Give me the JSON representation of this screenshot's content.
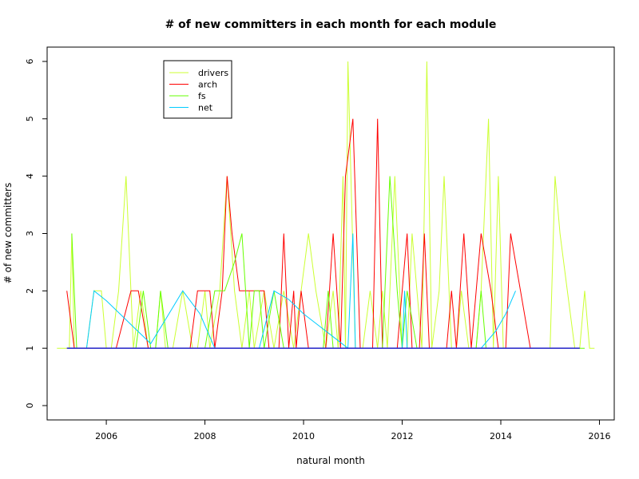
{
  "chart_data": {
    "type": "line",
    "title": "# of new committers in each month for each module",
    "xlabel": "natural month",
    "ylabel": "# of new committers",
    "xlim": [
      2004.8,
      2016.3
    ],
    "ylim": [
      -0.25,
      6.25
    ],
    "xticks": [
      2006,
      2008,
      2010,
      2012,
      2014,
      2016
    ],
    "xtick_labels": [
      "2006",
      "2008",
      "2010",
      "2012",
      "2014",
      "2016"
    ],
    "yticks": [
      0,
      1,
      2,
      3,
      4,
      5,
      6
    ],
    "ytick_labels": [
      "0",
      "1",
      "2",
      "3",
      "4",
      "5",
      "6"
    ],
    "grid": false,
    "legend_position": "top-left",
    "series": [
      {
        "name": "drivers",
        "color": "#ccff33",
        "x": [
          2005.0,
          2005.25,
          2005.3,
          2005.35,
          2005.45,
          2005.6,
          2005.75,
          2005.9,
          2006.0,
          2006.1,
          2006.25,
          2006.4,
          2006.55,
          2006.7,
          2006.85,
          2007.0,
          2007.1,
          2007.2,
          2007.35,
          2007.55,
          2007.75,
          2007.85,
          2008.0,
          2008.1,
          2008.3,
          2008.45,
          2008.6,
          2008.75,
          2008.9,
          2009.0,
          2009.2,
          2009.4,
          2009.6,
          2009.8,
          2010.1,
          2010.25,
          2010.45,
          2010.6,
          2010.7,
          2010.8,
          2010.85,
          2010.9,
          2011.05,
          2011.2,
          2011.35,
          2011.5,
          2011.6,
          2011.7,
          2011.85,
          2012.0,
          2012.1,
          2012.2,
          2012.3,
          2012.4,
          2012.5,
          2012.6,
          2012.75,
          2012.85,
          2013.0,
          2013.1,
          2013.2,
          2013.35,
          2013.5,
          2013.6,
          2013.75,
          2013.85,
          2013.95,
          2014.05,
          2014.2,
          2014.4,
          2014.6,
          2014.8,
          2015.0,
          2015.1,
          2015.2,
          2015.35,
          2015.5,
          2015.6,
          2015.7,
          2015.8,
          2015.9
        ],
        "y": [
          1,
          1,
          3,
          1,
          1,
          1,
          2,
          2,
          1,
          1,
          2,
          4,
          1,
          2,
          1,
          1,
          2,
          1,
          1,
          2,
          1,
          1,
          2,
          1,
          2,
          4,
          2,
          1,
          2,
          1,
          2,
          1,
          2,
          1,
          3,
          2,
          1,
          2,
          1,
          4,
          1,
          6,
          1,
          1,
          2,
          1,
          2,
          1,
          4,
          1,
          1,
          3,
          2,
          1,
          6,
          1,
          2,
          4,
          1,
          1,
          2,
          1,
          1,
          2,
          5,
          1,
          4,
          1,
          1,
          1,
          1,
          1,
          1,
          4,
          3,
          2,
          1,
          1,
          2,
          1,
          1
        ]
      },
      {
        "name": "arch",
        "color": "#ff0000",
        "x": [
          2005.2,
          2005.35,
          2005.5,
          2005.7,
          2005.85,
          2006.0,
          2006.2,
          2006.5,
          2006.65,
          2006.85,
          2007.0,
          2007.2,
          2007.4,
          2007.55,
          2007.7,
          2007.85,
          2008.0,
          2008.1,
          2008.2,
          2008.35,
          2008.45,
          2008.55,
          2008.7,
          2008.8,
          2009.0,
          2009.2,
          2009.3,
          2009.5,
          2009.6,
          2009.7,
          2009.8,
          2009.85,
          2009.95,
          2010.1,
          2010.3,
          2010.45,
          2010.6,
          2010.75,
          2010.85,
          2011.0,
          2011.15,
          2011.3,
          2011.4,
          2011.5,
          2011.6,
          2011.75,
          2011.9,
          2012.0,
          2012.1,
          2012.2,
          2012.35,
          2012.45,
          2012.55,
          2012.7,
          2012.8,
          2012.9,
          2013.0,
          2013.1,
          2013.25,
          2013.4,
          2013.6,
          2013.8,
          2013.95,
          2014.1,
          2014.2,
          2014.6,
          2015.0,
          2015.4,
          2015.6
        ],
        "y": [
          2,
          1,
          1,
          1,
          1,
          1,
          1,
          2,
          2,
          1,
          1,
          1,
          1,
          1,
          1,
          2,
          2,
          2,
          1,
          2,
          4,
          3,
          2,
          2,
          2,
          2,
          1,
          1,
          3,
          1,
          2,
          1,
          2,
          1,
          1,
          1,
          3,
          1,
          4,
          5,
          1,
          1,
          1,
          5,
          1,
          1,
          1,
          2,
          3,
          1,
          1,
          3,
          1,
          1,
          1,
          1,
          2,
          1,
          3,
          1,
          3,
          2,
          1,
          1,
          3,
          1,
          1,
          1,
          1
        ]
      },
      {
        "name": "fs",
        "color": "#66ff00",
        "x": [
          2005.3,
          2005.4,
          2005.6,
          2005.8,
          2006.0,
          2006.2,
          2006.4,
          2006.6,
          2006.75,
          2006.9,
          2007.0,
          2007.1,
          2007.25,
          2007.4,
          2007.6,
          2007.8,
          2008.0,
          2008.2,
          2008.4,
          2008.6,
          2008.75,
          2008.9,
          2009.0,
          2009.1,
          2009.2,
          2009.4,
          2009.6,
          2009.8,
          2010.0,
          2010.2,
          2010.4,
          2010.5,
          2010.6,
          2010.8,
          2011.0,
          2011.2,
          2011.4,
          2011.6,
          2011.75,
          2011.9,
          2012.0,
          2012.1,
          2012.3,
          2012.5,
          2012.7,
          2012.9,
          2013.1,
          2013.3,
          2013.5,
          2013.6,
          2013.7,
          2013.9,
          2014.0,
          2014.2,
          2014.5,
          2014.8,
          2015.0,
          2015.2,
          2015.5,
          2015.7
        ],
        "y": [
          3,
          1,
          1,
          1,
          1,
          1,
          1,
          1,
          2,
          1,
          1,
          2,
          1,
          1,
          1,
          1,
          1,
          2,
          2,
          2.5,
          3,
          1,
          2,
          2,
          1,
          2,
          1,
          1,
          1,
          1,
          1,
          2,
          1,
          1,
          1,
          1,
          1,
          1,
          4,
          2,
          1,
          2,
          1,
          1,
          1,
          1,
          1,
          1,
          1,
          2,
          1,
          1,
          1,
          1,
          1,
          1,
          1,
          1,
          1,
          1
        ]
      },
      {
        "name": "net",
        "color": "#00ccff",
        "x": [
          2005.25,
          2005.6,
          2005.75,
          2006.0,
          2006.3,
          2006.6,
          2006.9,
          2007.2,
          2007.55,
          2007.9,
          2008.2,
          2008.5,
          2008.8,
          2009.1,
          2009.4,
          2009.7,
          2010.0,
          2010.3,
          2010.6,
          2010.9,
          2011.0,
          2011.05,
          2011.2,
          2011.5,
          2011.8,
          2012.0,
          2012.05,
          2012.1,
          2012.4,
          2012.7,
          2013.0,
          2013.3,
          2013.6,
          2013.9,
          2014.1,
          2014.3
        ],
        "y": [
          1,
          1,
          2,
          1.83,
          1.58,
          1.33,
          1.08,
          1.5,
          2,
          1.6,
          1,
          1,
          1,
          1,
          2,
          1.85,
          1.6,
          1.4,
          1.2,
          1,
          3,
          1,
          1,
          1,
          1,
          1,
          2,
          1,
          1,
          1,
          1,
          1,
          1,
          1.3,
          1.6,
          2
        ]
      },
      {
        "name": "",
        "color": "#3333cc",
        "x": [
          2005.2,
          2015.6
        ],
        "y": [
          1,
          1
        ]
      }
    ],
    "legend": [
      {
        "label": "drivers",
        "color": "#ccff33"
      },
      {
        "label": "arch",
        "color": "#ff0000"
      },
      {
        "label": "fs",
        "color": "#66ff00"
      },
      {
        "label": "net",
        "color": "#00ccff"
      }
    ]
  }
}
